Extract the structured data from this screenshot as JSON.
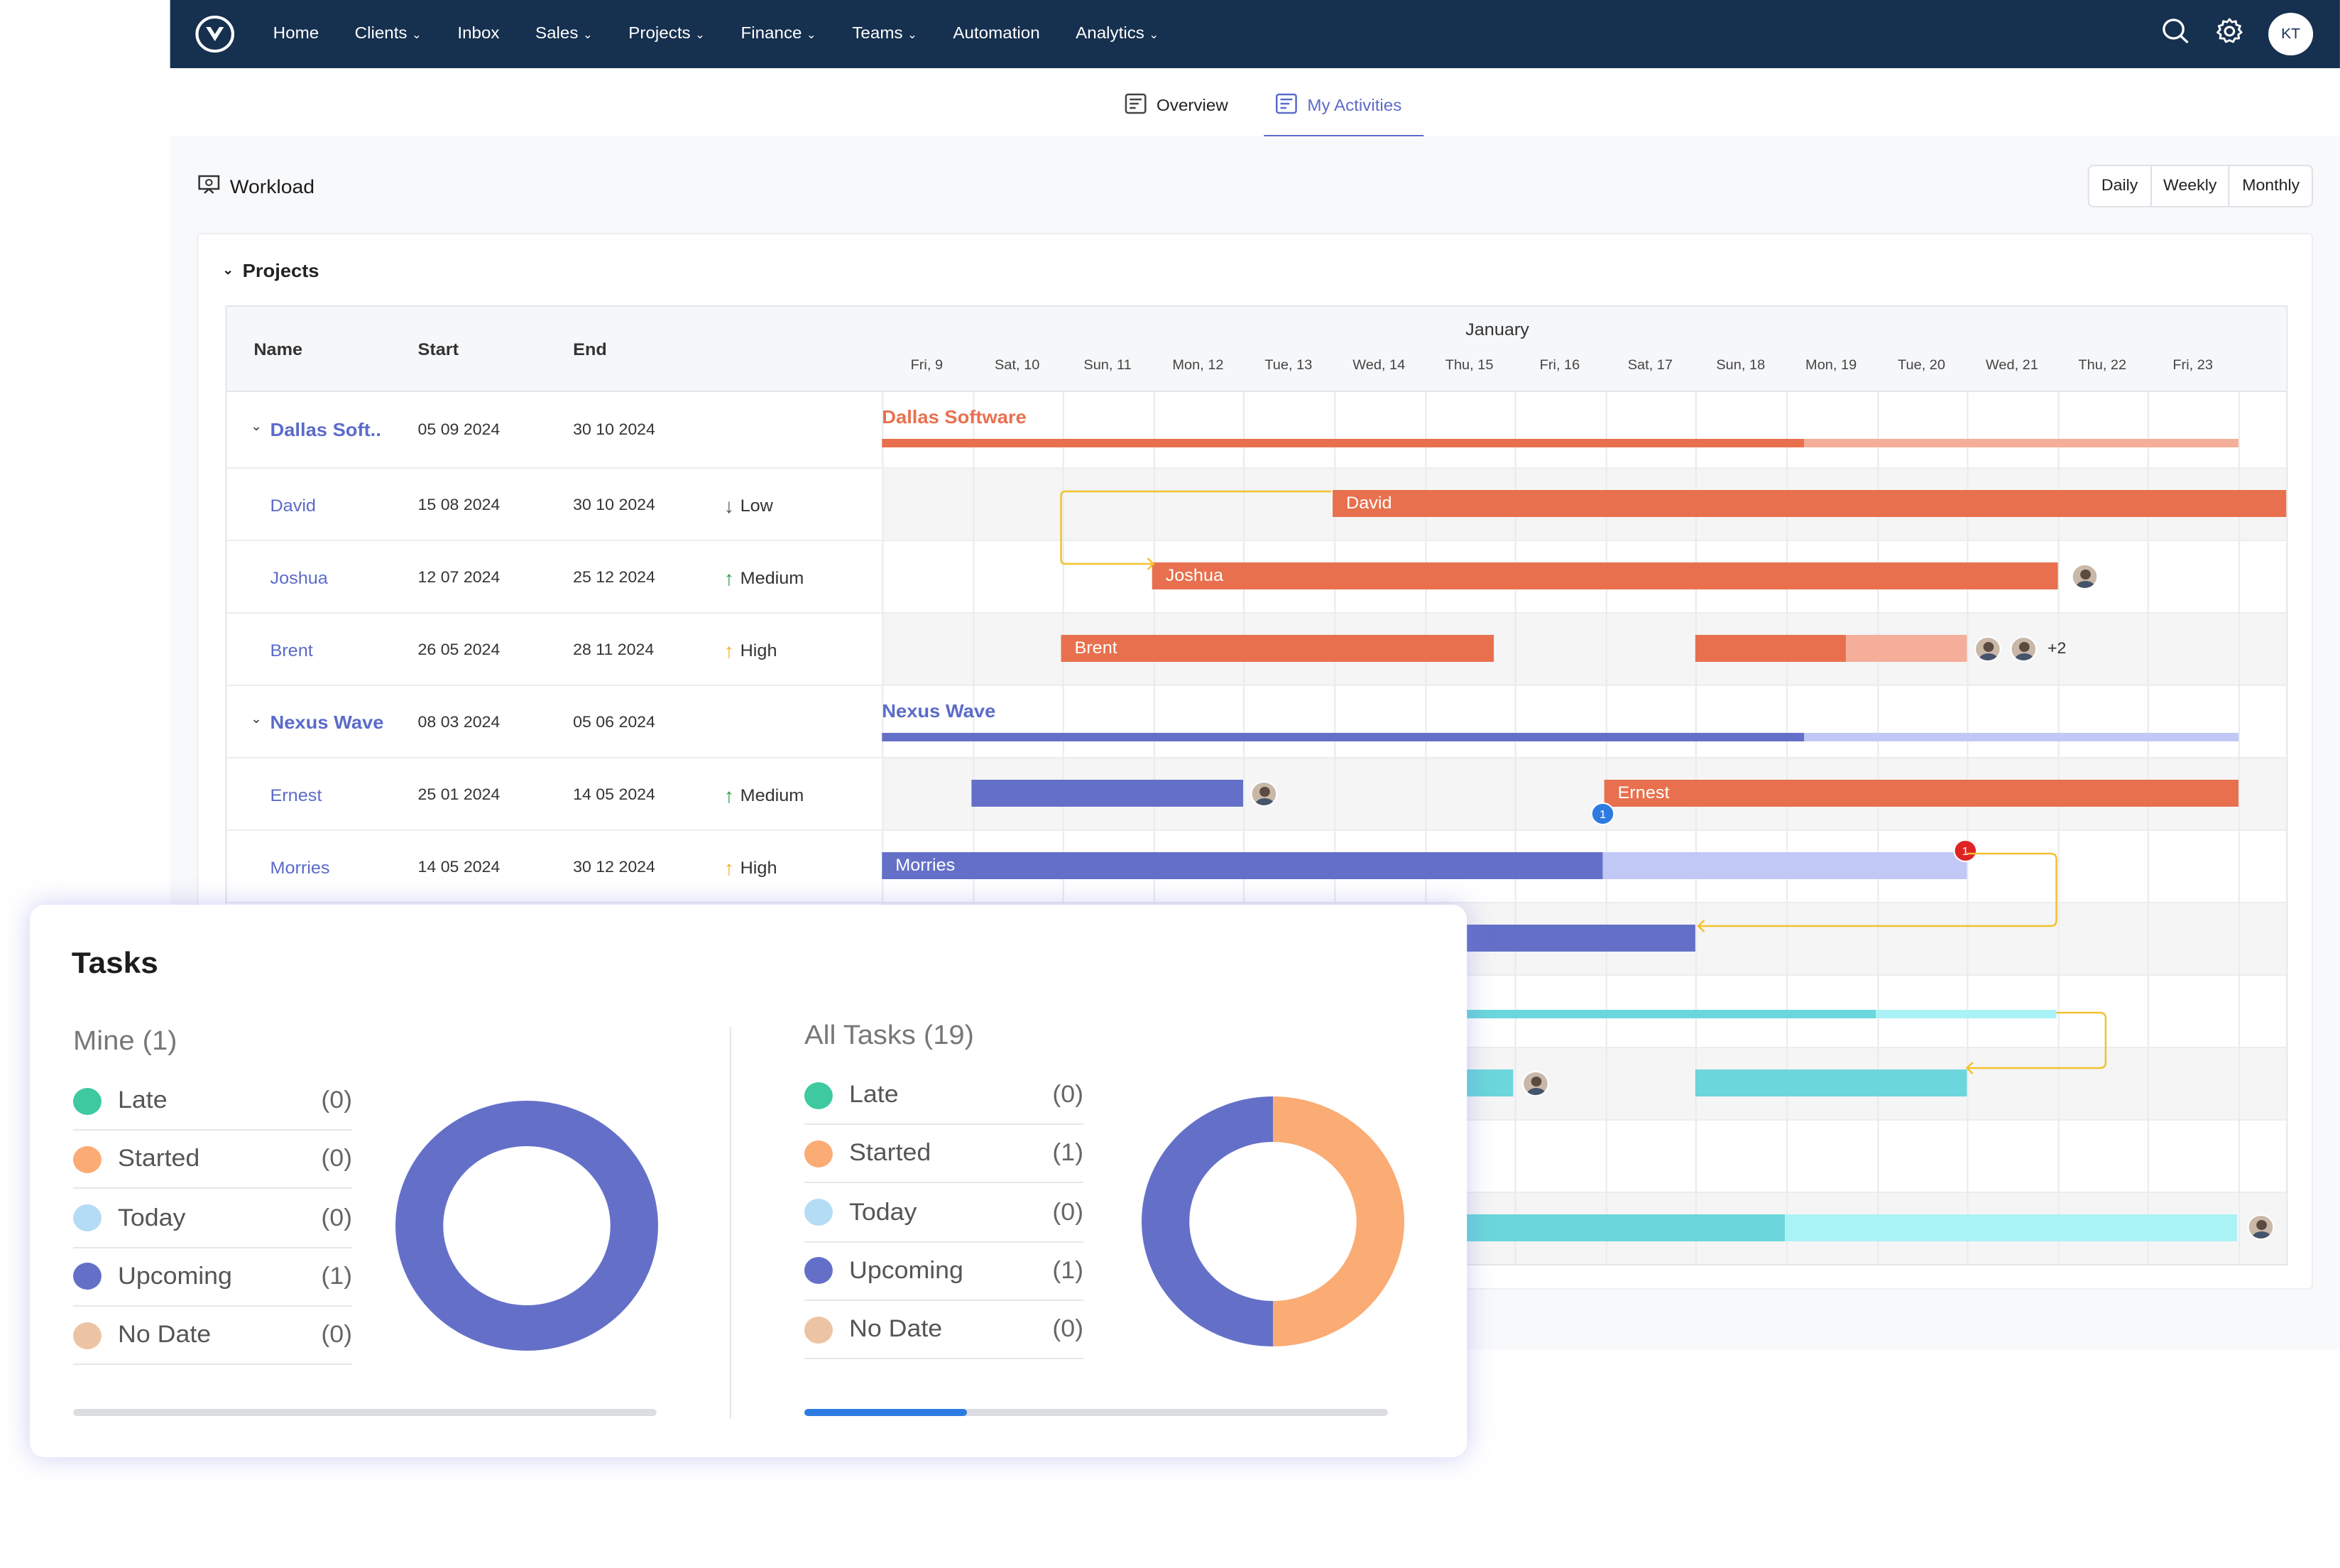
{
  "nav": {
    "items": [
      {
        "label": "Home",
        "chev": false
      },
      {
        "label": "Clients",
        "chev": true
      },
      {
        "label": "Inbox",
        "chev": false
      },
      {
        "label": "Sales",
        "chev": true
      },
      {
        "label": "Projects",
        "chev": true
      },
      {
        "label": "Finance",
        "chev": true
      },
      {
        "label": "Teams",
        "chev": true
      },
      {
        "label": "Automation",
        "chev": false
      },
      {
        "label": "Analytics",
        "chev": true
      }
    ],
    "avatar": "KT"
  },
  "tabs": {
    "overview": "Overview",
    "activities": "My Activities"
  },
  "workload": {
    "title": "Workload",
    "views": [
      "Daily",
      "Weekly",
      "Monthly"
    ]
  },
  "projects": {
    "title": "Projects",
    "headers": {
      "name": "Name",
      "start": "Start",
      "end": "End"
    },
    "month": "January",
    "days": [
      "Fri, 9",
      "Sat, 10",
      "Sun, 11",
      "Mon, 12",
      "Tue, 13",
      "Wed, 14",
      "Thu, 15",
      "Fri, 16",
      "Sat, 17",
      "Sun, 18",
      "Mon, 19",
      "Tue, 20",
      "Wed, 21",
      "Thu, 22",
      "Fri, 23"
    ],
    "rows": [
      {
        "name": "Dallas Soft..",
        "start": "05 09 2024",
        "end": "30 10 2024",
        "priority": "",
        "group": true
      },
      {
        "name": "David",
        "start": "15 08 2024",
        "end": "30 10 2024",
        "priority": "Low",
        "arrow": "↓",
        "acolor": "#555"
      },
      {
        "name": "Joshua",
        "start": "12 07 2024",
        "end": "25 12 2024",
        "priority": "Medium",
        "arrow": "↑",
        "acolor": "#2a9d3e"
      },
      {
        "name": "Brent",
        "start": "26 05 2024",
        "end": "28 11 2024",
        "priority": "High",
        "arrow": "↑",
        "acolor": "#f2b01e"
      },
      {
        "name": "Nexus Wave",
        "start": "08 03 2024",
        "end": "05 06 2024",
        "priority": "",
        "group": true
      },
      {
        "name": "Ernest",
        "start": "25 01 2024",
        "end": "14 05 2024",
        "priority": "Medium",
        "arrow": "↑",
        "acolor": "#2a9d3e"
      },
      {
        "name": "Morries",
        "start": "14 05 2024",
        "end": "30 12 2024",
        "priority": "High",
        "arrow": "↑",
        "acolor": "#f2b01e"
      }
    ],
    "gantt": {
      "dallas_label": "Dallas Software",
      "nexus_label": "Nexus Wave",
      "david": "David",
      "joshua": "Joshua",
      "brent": "Brent",
      "ernest": "Ernest",
      "morries": "Morries",
      "more": "+2",
      "badge_blue": "1",
      "badge_red": "1"
    },
    "colors": {
      "orange": "#e8704e",
      "orange_light": "#f5ae99",
      "blue": "#6470c8",
      "blue_light": "#c2c8f5",
      "teal": "#6bd6db",
      "teal_light": "#a9f3f6"
    }
  },
  "tasks": {
    "title": "Tasks",
    "mine": {
      "title": "Mine (1)",
      "items": [
        {
          "label": "Late",
          "count": "(0)",
          "color": "#3ec9a0"
        },
        {
          "label": "Started",
          "count": "(0)",
          "color": "#fbab74"
        },
        {
          "label": "Today",
          "count": "(0)",
          "color": "#b4dcf5"
        },
        {
          "label": "Upcoming",
          "count": "(1)",
          "color": "#6470c8"
        },
        {
          "label": "No Date",
          "count": "(0)",
          "color": "#ecc4a4"
        }
      ],
      "progress": 0
    },
    "all": {
      "title": "All Tasks (19)",
      "items": [
        {
          "label": "Late",
          "count": "(0)",
          "color": "#3ec9a0"
        },
        {
          "label": "Started",
          "count": "(1)",
          "color": "#fbab74"
        },
        {
          "label": "Today",
          "count": "(0)",
          "color": "#b4dcf5"
        },
        {
          "label": "Upcoming",
          "count": "(1)",
          "color": "#6470c8"
        },
        {
          "label": "No Date",
          "count": "(0)",
          "color": "#ecc4a4"
        }
      ],
      "progress": 0.28
    }
  }
}
